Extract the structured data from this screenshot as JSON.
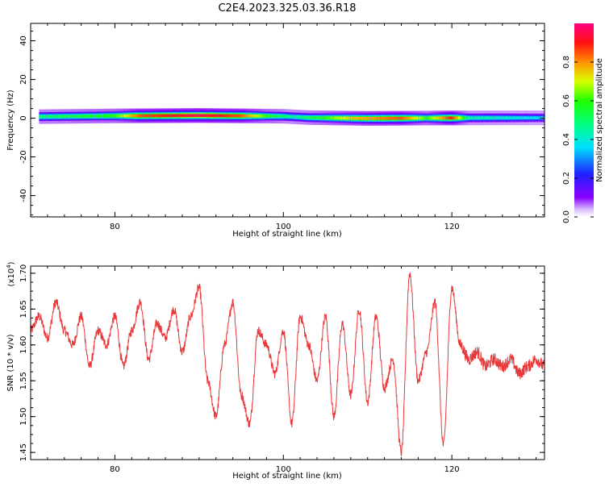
{
  "title": "C2E4.2023.325.03.36.R18",
  "chart_data": [
    {
      "type": "heatmap",
      "xlabel": "Height of straight line (km)",
      "ylabel": "Frequency (Hz)",
      "xlim": [
        70,
        131
      ],
      "ylim": [
        -51,
        49
      ],
      "xticks": [
        80,
        100,
        120
      ],
      "yticks": [
        40,
        20,
        0,
        -20,
        -40
      ],
      "colorbar": {
        "label": "Normalized spectral amplitude",
        "range": [
          0,
          1
        ],
        "ticks": [
          0.0,
          0.2,
          0.4,
          0.6,
          0.8
        ]
      },
      "center_frequency": [
        {
          "x": 71,
          "y": 0.8
        },
        {
          "x": 80,
          "y": 1.2
        },
        {
          "x": 90,
          "y": 1.4
        },
        {
          "x": 96,
          "y": 1.2
        },
        {
          "x": 100,
          "y": 1.0
        },
        {
          "x": 103,
          "y": 0.3
        },
        {
          "x": 110,
          "y": -0.1
        },
        {
          "x": 118,
          "y": 0.1
        },
        {
          "x": 125,
          "y": 0.2
        },
        {
          "x": 131,
          "y": 0.2
        }
      ],
      "peak_amplitude": [
        {
          "x": 71,
          "amp": 0.5
        },
        {
          "x": 76,
          "amp": 0.55
        },
        {
          "x": 80,
          "amp": 0.6
        },
        {
          "x": 83,
          "amp": 0.85
        },
        {
          "x": 90,
          "amp": 0.95
        },
        {
          "x": 95,
          "amp": 0.85
        },
        {
          "x": 98,
          "amp": 0.6
        },
        {
          "x": 101,
          "amp": 0.45
        },
        {
          "x": 104,
          "amp": 0.55
        },
        {
          "x": 108,
          "amp": 0.75
        },
        {
          "x": 111,
          "amp": 0.8
        },
        {
          "x": 114,
          "amp": 0.85
        },
        {
          "x": 117,
          "amp": 0.6
        },
        {
          "x": 120,
          "amp": 0.9
        },
        {
          "x": 122,
          "amp": 0.45
        },
        {
          "x": 131,
          "amp": 0.35
        }
      ]
    },
    {
      "type": "line",
      "xlabel": "Height of straight line (km)",
      "ylabel": "SNR (10 * v/v)",
      "scale_label": "(x10",
      "scale_exponent": "4",
      "scale_suffix": ")",
      "xlim": [
        70,
        131
      ],
      "ylim": [
        1.44,
        1.71
      ],
      "xticks": [
        80,
        100,
        120
      ],
      "yticks": [
        1.45,
        1.5,
        1.55,
        1.6,
        1.65,
        1.7
      ],
      "series": [
        {
          "color": "#e8383a",
          "points": [
            [
              70,
              1.62
            ],
            [
              71,
              1.64
            ],
            [
              72,
              1.61
            ],
            [
              73,
              1.66
            ],
            [
              74,
              1.62
            ],
            [
              75,
              1.6
            ],
            [
              76,
              1.64
            ],
            [
              77,
              1.57
            ],
            [
              78,
              1.62
            ],
            [
              79,
              1.6
            ],
            [
              80,
              1.64
            ],
            [
              81,
              1.57
            ],
            [
              82,
              1.62
            ],
            [
              83,
              1.66
            ],
            [
              84,
              1.58
            ],
            [
              85,
              1.63
            ],
            [
              86,
              1.61
            ],
            [
              87,
              1.65
            ],
            [
              88,
              1.59
            ],
            [
              89,
              1.64
            ],
            [
              90,
              1.68
            ],
            [
              91,
              1.55
            ],
            [
              92,
              1.5
            ],
            [
              93,
              1.6
            ],
            [
              94,
              1.66
            ],
            [
              95,
              1.53
            ],
            [
              96,
              1.49
            ],
            [
              97,
              1.62
            ],
            [
              98,
              1.6
            ],
            [
              99,
              1.56
            ],
            [
              100,
              1.62
            ],
            [
              101,
              1.49
            ],
            [
              102,
              1.64
            ],
            [
              103,
              1.6
            ],
            [
              104,
              1.55
            ],
            [
              105,
              1.64
            ],
            [
              106,
              1.5
            ],
            [
              107,
              1.63
            ],
            [
              108,
              1.53
            ],
            [
              109,
              1.65
            ],
            [
              110,
              1.52
            ],
            [
              111,
              1.64
            ],
            [
              112,
              1.54
            ],
            [
              113,
              1.58
            ],
            [
              114,
              1.45
            ],
            [
              115,
              1.7
            ],
            [
              116,
              1.55
            ],
            [
              117,
              1.59
            ],
            [
              118,
              1.66
            ],
            [
              119,
              1.46
            ],
            [
              120,
              1.68
            ],
            [
              121,
              1.6
            ],
            [
              122,
              1.58
            ],
            [
              123,
              1.59
            ],
            [
              124,
              1.57
            ],
            [
              125,
              1.58
            ],
            [
              126,
              1.57
            ],
            [
              127,
              1.58
            ],
            [
              128,
              1.56
            ],
            [
              129,
              1.57
            ],
            [
              130,
              1.58
            ],
            [
              131,
              1.57
            ]
          ]
        }
      ]
    }
  ]
}
